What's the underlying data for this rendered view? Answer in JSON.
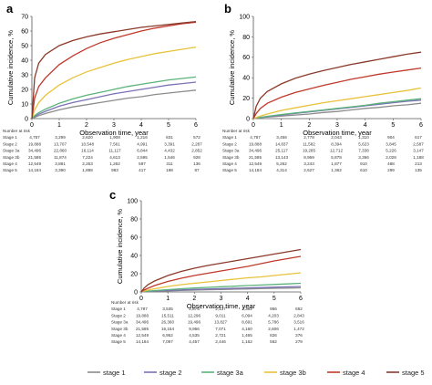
{
  "legend": [
    "stage 1",
    "stage 2",
    "stage 3a",
    "stage 3b",
    "stage 4",
    "stage 5"
  ],
  "colors": [
    "#8c8c8c",
    "#7a72b5",
    "#5bb37a",
    "#e8c23a",
    "#c0392b",
    "#8b3a2a"
  ],
  "risk_header": "Number at risk",
  "risk_stage_labels": [
    "Stage 1",
    "Stage 2",
    "Stage 3a",
    "Stage 3b",
    "Stage 4",
    "Stage 5"
  ],
  "chart_data": [
    {
      "panel": "a",
      "type": "line",
      "xlabel": "Observation time, year",
      "ylabel": "Cumulative incidence, %",
      "xlim": [
        0,
        6
      ],
      "ylim": [
        0,
        70
      ],
      "xticks": [
        0,
        1,
        2,
        3,
        4,
        5,
        6
      ],
      "yticks": [
        0,
        10,
        20,
        30,
        40,
        50,
        60,
        70
      ],
      "x": [
        0,
        0.1,
        0.25,
        0.5,
        1,
        1.5,
        2,
        2.5,
        3,
        3.5,
        4,
        4.5,
        5,
        5.5,
        6
      ],
      "series": [
        {
          "name": "stage 1",
          "values": [
            0,
            0.8,
            2,
            3.5,
            6,
            8,
            9.5,
            11,
            12.5,
            14,
            15,
            16.5,
            17.5,
            18.5,
            19.5
          ]
        },
        {
          "name": "stage 2",
          "values": [
            0,
            1.5,
            3,
            5,
            8.5,
            11,
            13,
            15,
            17,
            18.5,
            20,
            21.5,
            23,
            24,
            25
          ]
        },
        {
          "name": "stage 3a",
          "values": [
            0,
            2,
            4,
            6.5,
            10.5,
            13.5,
            16,
            18,
            20,
            22,
            23.5,
            25,
            26.5,
            27.5,
            28.5
          ]
        },
        {
          "name": "stage 3b",
          "values": [
            0,
            6,
            11,
            16,
            23,
            28,
            32,
            35,
            38,
            40.5,
            42.5,
            44.5,
            46,
            47.5,
            49
          ]
        },
        {
          "name": "stage 4",
          "values": [
            0,
            14,
            22,
            28,
            37,
            43,
            48,
            52,
            55,
            57.5,
            60,
            62,
            63.5,
            65,
            66
          ]
        },
        {
          "name": "stage 5",
          "values": [
            0,
            28,
            38,
            44,
            50,
            53.5,
            56,
            58,
            59.5,
            61,
            62.5,
            63.5,
            64.5,
            65.5,
            66.5
          ]
        }
      ],
      "risk_table": {
        "Stage 1": [
          "4,787",
          "3,299",
          "2,620",
          "1,908",
          "1,216",
          "831",
          "572"
        ],
        "Stage 2": [
          "19,888",
          "13,707",
          "10,548",
          "7,561",
          "4,991",
          "3,391",
          "2,287"
        ],
        "Stage 3a": [
          "34,496",
          "22,860",
          "16,114",
          "11,117",
          "6,844",
          "4,432",
          "2,852"
        ],
        "Stage 3b": [
          "21,585",
          "11,874",
          "7,224",
          "4,613",
          "2,595",
          "1,546",
          "928"
        ],
        "Stage 4": [
          "12,549",
          "3,881",
          "2,253",
          "1,262",
          "597",
          "311",
          "136"
        ],
        "Stage 5": [
          "14,184",
          "3,390",
          "1,898",
          "983",
          "417",
          "198",
          "87"
        ]
      }
    },
    {
      "panel": "b",
      "type": "line",
      "xlabel": "Observation time, year",
      "ylabel": "Cumulative incidence, %",
      "xlim": [
        0,
        6
      ],
      "ylim": [
        0,
        100
      ],
      "xticks": [
        0,
        1,
        2,
        3,
        4,
        5,
        6
      ],
      "yticks": [
        0,
        20,
        40,
        60,
        80,
        100
      ],
      "x": [
        0,
        0.1,
        0.25,
        0.5,
        1,
        1.5,
        2,
        2.5,
        3,
        3.5,
        4,
        4.5,
        5,
        5.5,
        6
      ],
      "series": [
        {
          "name": "stage 1",
          "values": [
            0,
            0.5,
            1,
            1.5,
            2.5,
            3.5,
            4.5,
            6,
            7,
            8.5,
            10,
            11,
            12.5,
            13.5,
            15
          ]
        },
        {
          "name": "stage 2",
          "values": [
            0,
            0.5,
            1,
            2,
            3.5,
            5,
            6.5,
            8,
            9.5,
            11,
            12.5,
            14,
            15.5,
            17,
            18
          ]
        },
        {
          "name": "stage 3a",
          "values": [
            0,
            0.5,
            1.2,
            2.2,
            4,
            5.5,
            7,
            8.5,
            10,
            11.5,
            13,
            15,
            16.5,
            18,
            19.5
          ]
        },
        {
          "name": "stage 3b",
          "values": [
            0,
            1,
            2.5,
            4.5,
            8,
            10.5,
            13,
            15.5,
            17.5,
            19.5,
            21.5,
            23.5,
            25.5,
            27.5,
            30
          ]
        },
        {
          "name": "stage 4",
          "values": [
            0,
            5,
            10,
            15,
            21,
            25.5,
            29,
            32.5,
            35.5,
            38.5,
            41,
            43.5,
            45.5,
            47.5,
            49.5
          ]
        },
        {
          "name": "stage 5",
          "values": [
            0,
            12,
            20,
            26.5,
            34,
            39.5,
            43.5,
            47,
            50,
            53,
            55.5,
            58,
            60.5,
            63,
            65
          ]
        }
      ],
      "risk_table": {
        "Stage 1": [
          "4,787",
          "3,456",
          "2,778",
          "2,043",
          "1,310",
          "904",
          "617"
        ],
        "Stage 2": [
          "19,888",
          "14,837",
          "11,582",
          "8,394",
          "5,623",
          "3,845",
          "2,587"
        ],
        "Stage 3a": [
          "34,496",
          "25,117",
          "19,285",
          "12,712",
          "7,338",
          "5,226",
          "3,147"
        ],
        "Stage 3b": [
          "21,585",
          "13,143",
          "8,959",
          "5,878",
          "3,356",
          "2,028",
          "1,188"
        ],
        "Stage 4": [
          "12,549",
          "5,262",
          "3,243",
          "1,877",
          "910",
          "488",
          "213"
        ],
        "Stage 5": [
          "14,184",
          "4,314",
          "2,627",
          "1,362",
          "610",
          "299",
          "135"
        ]
      }
    },
    {
      "panel": "c",
      "type": "line",
      "xlabel": "Observation time, year",
      "ylabel": "Cumulative incidence, %",
      "xlim": [
        0,
        6
      ],
      "ylim": [
        0,
        100
      ],
      "xticks": [
        0,
        1,
        2,
        3,
        4,
        5,
        6
      ],
      "yticks": [
        0,
        20,
        40,
        60,
        80,
        100
      ],
      "x": [
        0,
        0.1,
        0.25,
        0.5,
        1,
        1.5,
        2,
        2.5,
        3,
        3.5,
        4,
        4.5,
        5,
        5.5,
        6
      ],
      "series": [
        {
          "name": "stage 1",
          "values": [
            0,
            0.2,
            0.5,
            0.8,
            1.2,
            1.6,
            2,
            2.4,
            2.7,
            3,
            3.3,
            3.6,
            4,
            4.2,
            4.5
          ]
        },
        {
          "name": "stage 2",
          "values": [
            0,
            0.3,
            0.6,
            1,
            1.6,
            2.2,
            2.7,
            3.2,
            3.6,
            4,
            4.4,
            4.8,
            5.2,
            5.6,
            6
          ]
        },
        {
          "name": "stage 3a",
          "values": [
            0,
            0.4,
            0.8,
            1.5,
            2.5,
            3.5,
            4.3,
            5,
            5.7,
            6.3,
            7,
            7.6,
            8.2,
            8.8,
            9.5
          ]
        },
        {
          "name": "stage 3b",
          "values": [
            0,
            1,
            2,
            3.5,
            6,
            8,
            9.5,
            11,
            12.5,
            14,
            15.5,
            16.5,
            18,
            19.5,
            21
          ]
        },
        {
          "name": "stage 4",
          "values": [
            0,
            2,
            4,
            7,
            11.5,
            15,
            18,
            20.5,
            23,
            25.5,
            28,
            31,
            34,
            36.5,
            39
          ]
        },
        {
          "name": "stage 5",
          "values": [
            0,
            4,
            8,
            12,
            18,
            22.5,
            26,
            29,
            31.5,
            34,
            36.5,
            39,
            41.5,
            44,
            46.5
          ]
        }
      ],
      "risk_table": {
        "Stage 1": [
          "4,787",
          "3,535",
          "2,875",
          "2,137",
          "1,382",
          "956",
          "652"
        ],
        "Stage 2": [
          "19,888",
          "15,511",
          "12,296",
          "9,011",
          "6,094",
          "4,203",
          "2,843"
        ],
        "Stage 3a": [
          "34,496",
          "26,360",
          "19,496",
          "13,827",
          "8,691",
          "5,786",
          "3,516"
        ],
        "Stage 3b": [
          "21,585",
          "16,154",
          "9,956",
          "7,071",
          "4,160",
          "2,606",
          "1,472"
        ],
        "Stage 4": [
          "12,549",
          "6,952",
          "4,535",
          "2,721",
          "1,465",
          "826",
          "376"
        ],
        "Stage 5": [
          "14,184",
          "7,097",
          "4,457",
          "2,446",
          "1,162",
          "562",
          "279"
        ]
      }
    }
  ]
}
